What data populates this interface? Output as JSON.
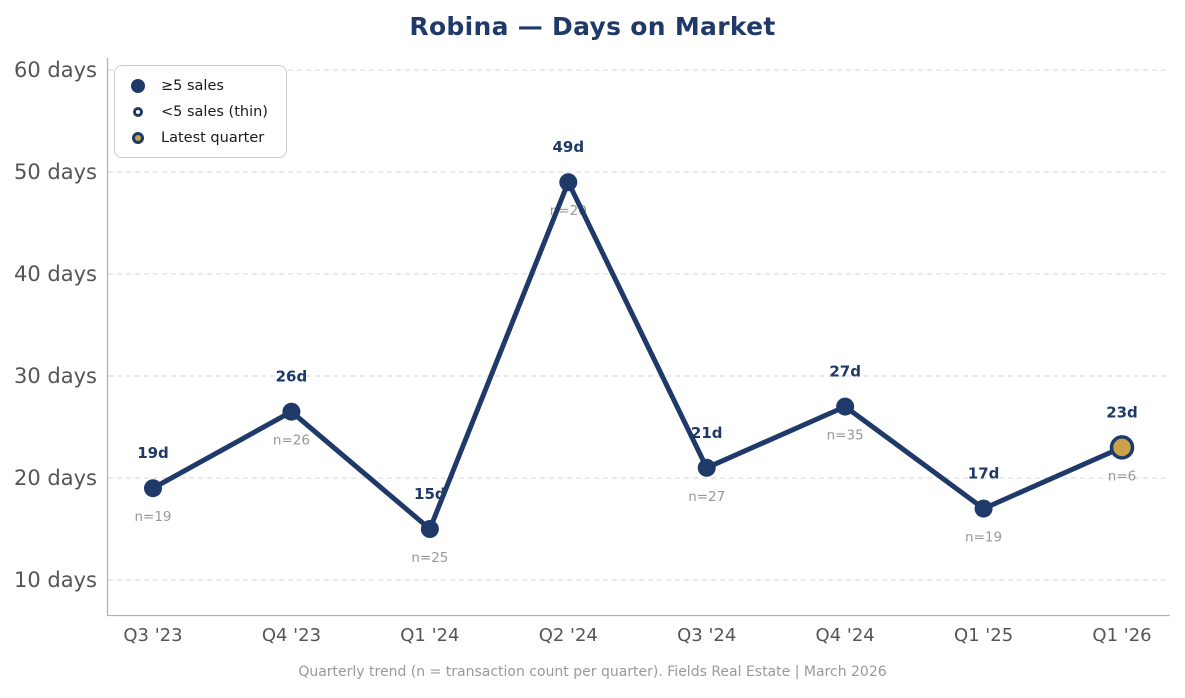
{
  "title": "Robina — Days on Market",
  "footer": "Quarterly trend (n = transaction count per quarter). Fields Real Estate | March 2026",
  "legend": {
    "items": [
      {
        "label": "≥5 sales",
        "marker": "filled-navy-dot"
      },
      {
        "label": "<5 sales (thin)",
        "marker": "open-navy-circle"
      },
      {
        "label": "Latest quarter",
        "marker": "gold-dot-navy-ring"
      }
    ]
  },
  "colors": {
    "navy": "#1f3a68",
    "gold": "#c9a24a",
    "grid": "#dedede",
    "spine": "#b3b3b3",
    "tick_text": "#555555",
    "n_text": "#979797",
    "value_text": "#1f3a68",
    "footer_text": "#999999",
    "background": "#ffffff"
  },
  "chart_data": {
    "type": "line",
    "title": "Robina — Days on Market",
    "xlabel": "",
    "ylabel": "",
    "categories": [
      "Q3 '23",
      "Q4 '23",
      "Q1 '24",
      "Q2 '24",
      "Q3 '24",
      "Q4 '24",
      "Q1 '25",
      "Q1 '26"
    ],
    "series": [
      {
        "name": "Days on Market",
        "values": [
          19,
          26.5,
          15,
          49,
          21,
          27,
          17,
          23
        ],
        "point_labels": [
          "19d",
          "26d",
          "15d",
          "49d",
          "21d",
          "27d",
          "17d",
          "23d"
        ],
        "n_labels": [
          "n=19",
          "n=26",
          "n=25",
          "n=20",
          "n=27",
          "n=35",
          "n=19",
          "n=6"
        ]
      }
    ],
    "latest_point_index": 7,
    "yticks": [
      10,
      20,
      30,
      40,
      50,
      60
    ],
    "ytick_suffix": " days",
    "ylim": [
      6.6,
      61.2
    ],
    "grid": "horizontal-dashed",
    "legend_position": "upper-left"
  }
}
